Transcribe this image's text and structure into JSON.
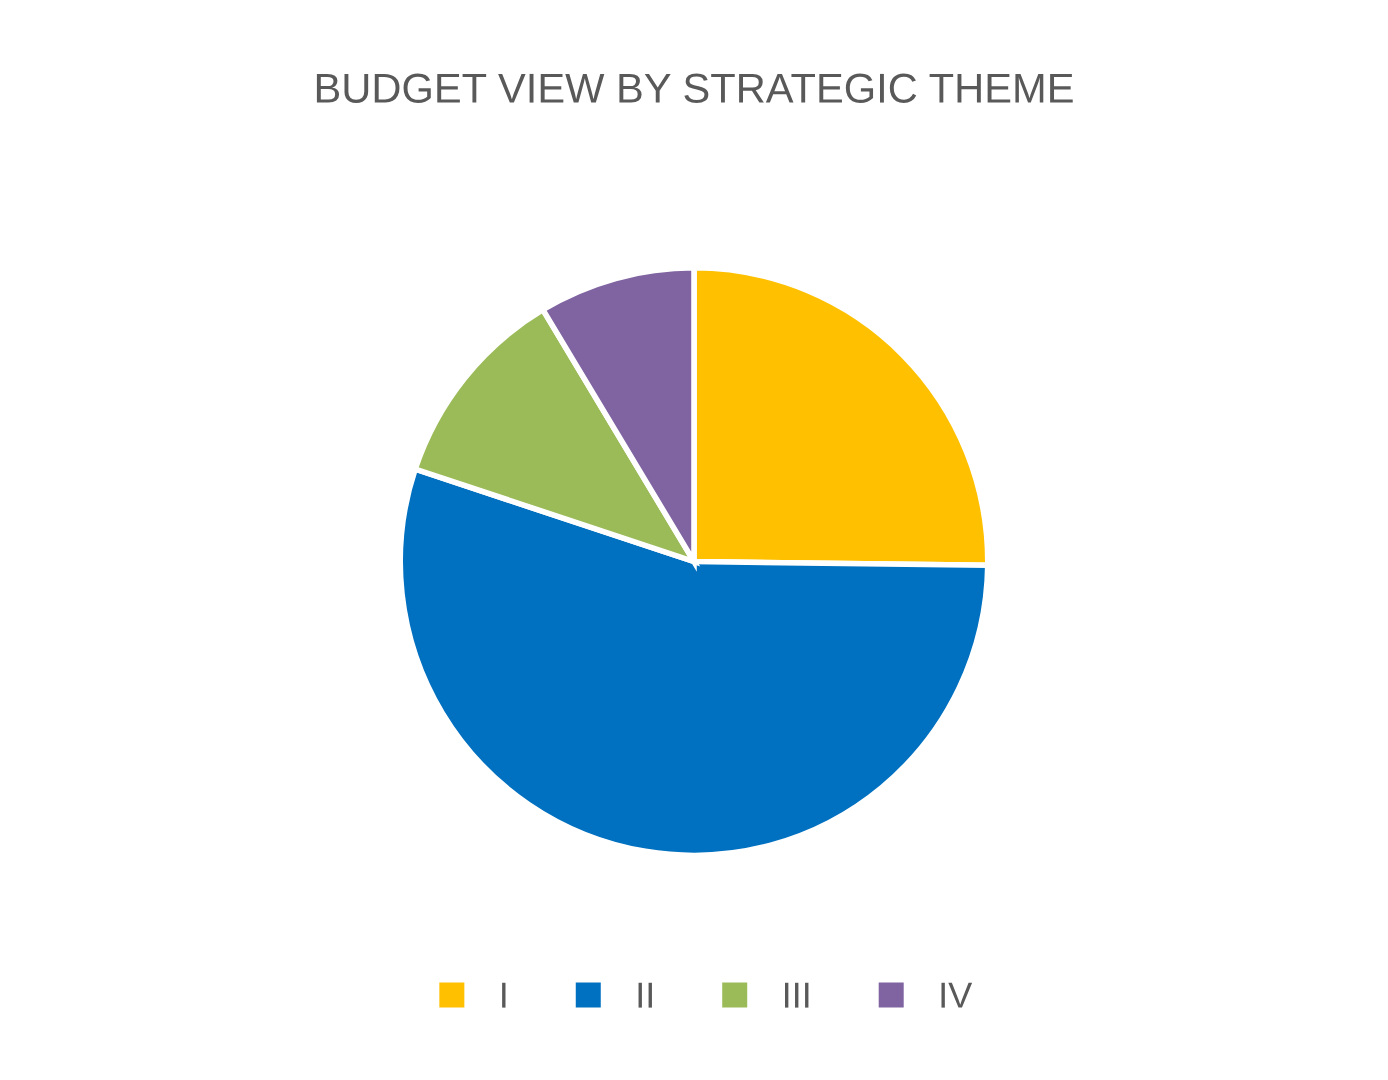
{
  "chart_data": {
    "type": "pie",
    "title": "BUDGET VIEW BY STRATEGIC THEME",
    "categories": [
      "I",
      "II",
      "III",
      "IV"
    ],
    "values": [
      25.2,
      54.9,
      11.3,
      8.6
    ],
    "colors": [
      "#ffc000",
      "#0070c0",
      "#9bbb59",
      "#8064a2"
    ],
    "legend": "bottom"
  }
}
